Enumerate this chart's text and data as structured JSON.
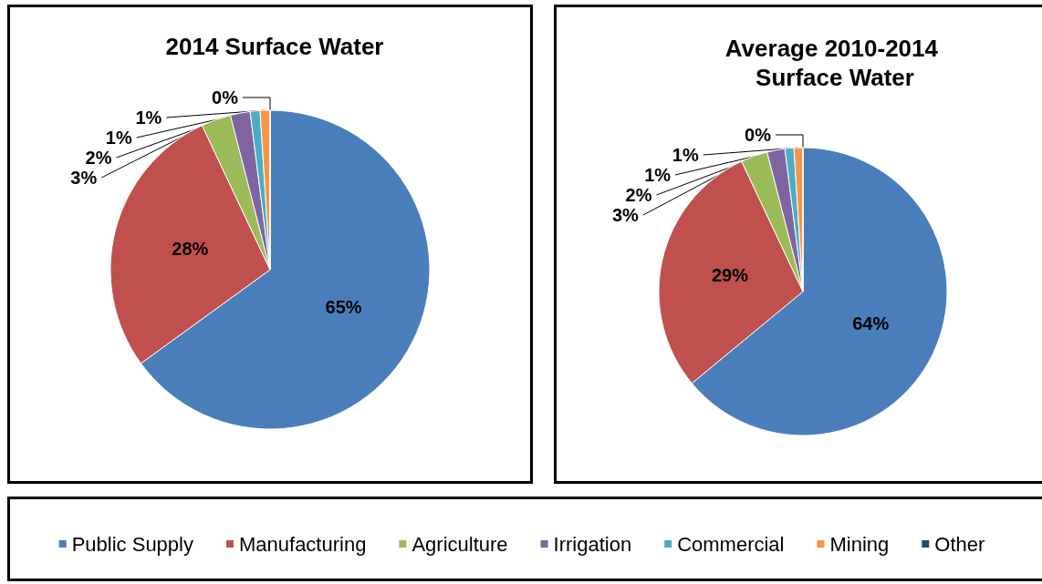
{
  "chart_data": [
    {
      "type": "pie",
      "title": "2014 Surface Water",
      "categories": [
        "Public Supply",
        "Manufacturing",
        "Agriculture",
        "Irrigation",
        "Commercial",
        "Mining",
        "Other"
      ],
      "values": [
        65,
        28,
        3,
        2,
        1,
        1,
        0
      ],
      "value_labels": [
        "65%",
        "28%",
        "3%",
        "2%",
        "1%",
        "1%",
        "0%"
      ],
      "colors": [
        "#4a7ebb",
        "#c0504d",
        "#9bbb59",
        "#8064a2",
        "#4bacc6",
        "#f79646",
        "#1f497d"
      ],
      "legend": "bottom"
    },
    {
      "type": "pie",
      "title": "Average 2010-2014 Surface Water",
      "categories": [
        null,
        null,
        null,
        null,
        null,
        null,
        null
      ],
      "values": [
        64,
        29,
        3,
        2,
        1,
        1,
        0
      ],
      "value_labels": [
        "64%",
        "29%",
        "3%",
        "2%",
        "1%",
        "1%",
        "0%"
      ],
      "colors": [
        "#4a7ebb",
        "#c0504d",
        "#9bbb59",
        "#8064a2",
        "#4bacc6",
        "#f79646",
        "#1f497d"
      ]
    }
  ]
}
